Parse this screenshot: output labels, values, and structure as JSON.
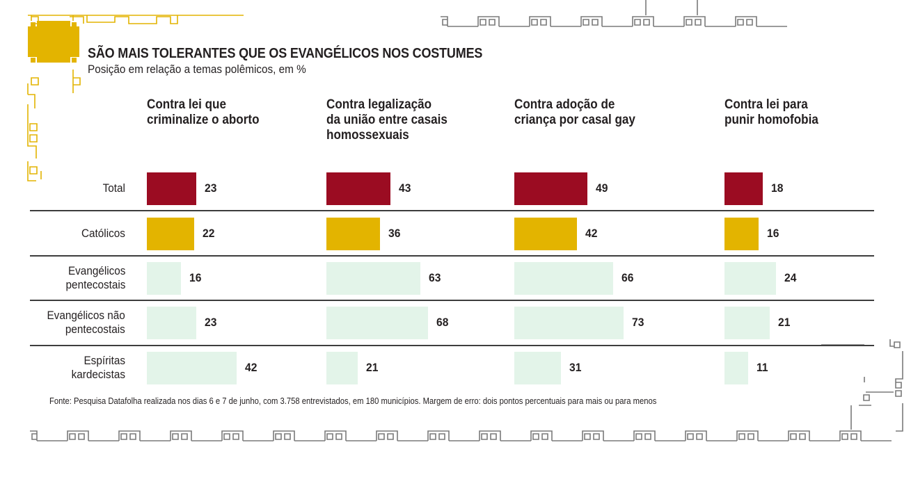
{
  "colors": {
    "total": "#9b0c22",
    "catolicos": "#e3b400",
    "others": "#e3f4e9",
    "ornament_gold": "#e3b400",
    "ornament_gray": "#7a7a7a",
    "separator": "#3d3d3d"
  },
  "header": {
    "title": "SÃO MAIS TOLERANTES QUE OS EVANGÉLICOS NOS COSTUMES",
    "subtitle": "Posição em relação a temas polêmicos, em %"
  },
  "footer": {
    "source": "Fonte: Pesquisa Datafolha realizada nos dias 6 e 7 de junho, com 3.758 entrevistados, em 180 municípios. Margem de erro: dois pontos percentuais para mais ou para menos"
  },
  "chart_data": {
    "type": "bar",
    "orientation": "horizontal",
    "title": "SÃO MAIS TOLERANTES QUE OS EVANGÉLICOS NOS COSTUMES",
    "subtitle": "Posição em relação a temas polêmicos, em %",
    "unit": "%",
    "groups": [
      {
        "key": "total",
        "label": "Total",
        "label_lines": [
          "Total"
        ]
      },
      {
        "key": "catolicos",
        "label": "Católicos",
        "label_lines": [
          "Católicos"
        ]
      },
      {
        "key": "evang_pent",
        "label": "Evangélicos pentecostais",
        "label_lines": [
          "Evangélicos",
          "pentecostais"
        ]
      },
      {
        "key": "evang_nao_pent",
        "label": "Evangélicos não pentecostais",
        "label_lines": [
          "Evangélicos não",
          "pentecostais"
        ]
      },
      {
        "key": "espiritas",
        "label": "Espíritas kardecistas",
        "label_lines": [
          "Espíritas",
          "kardecistas"
        ]
      }
    ],
    "series": [
      {
        "name": "Contra lei que criminalize o aborto",
        "title_lines": [
          "Contra lei que",
          "criminalize o aborto"
        ],
        "values": [
          23,
          22,
          16,
          23,
          42
        ]
      },
      {
        "name": "Contra legalização da união entre casais homossexuais",
        "title_lines": [
          "Contra legalização",
          "da união entre casais",
          "homossexuais"
        ],
        "values": [
          43,
          36,
          63,
          68,
          21
        ]
      },
      {
        "name": "Contra adoção de criança por casal gay",
        "title_lines": [
          "Contra adoção de",
          "criança por casal gay"
        ],
        "values": [
          49,
          42,
          66,
          73,
          31
        ]
      },
      {
        "name": "Contra lei para punir homofobia",
        "title_lines": [
          "Contra lei para",
          "punir homofobia"
        ],
        "values": [
          18,
          16,
          24,
          21,
          11
        ]
      }
    ],
    "source": "Fonte: Pesquisa Datafolha realizada nos dias 6 e 7 de junho, com 3.758 entrevistados, em 180 municípios. Margem de erro: dois pontos percentuais para mais ou para menos"
  }
}
